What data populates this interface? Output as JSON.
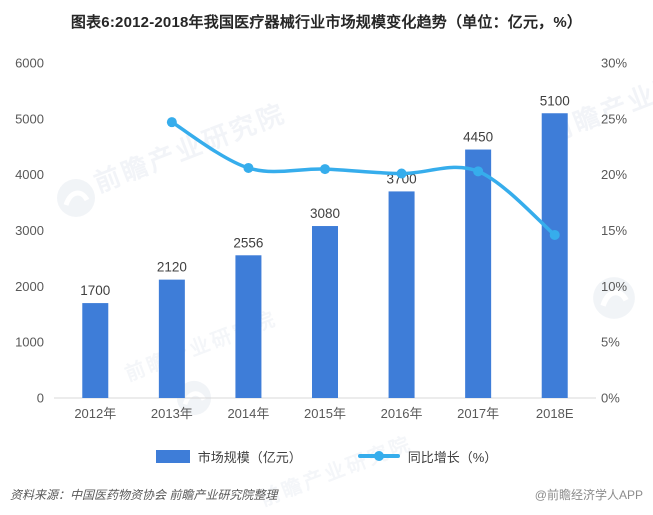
{
  "title": "图表6:2012-2018年我国医疗器械行业市场规模变化趋势（单位：亿元，%）",
  "chart_data": {
    "type": "combo",
    "categories": [
      "2012年",
      "2013年",
      "2014年",
      "2015年",
      "2016年",
      "2017年",
      "2018E"
    ],
    "series": [
      {
        "name": "市场规模（亿元）",
        "type": "bar",
        "values": [
          1700,
          2120,
          2556,
          3080,
          3700,
          4450,
          5100
        ],
        "color": "#3e7dd8",
        "labels": [
          "1700",
          "2120",
          "2556",
          "3080",
          "3700",
          "4450",
          "5100"
        ]
      },
      {
        "name": "同比增长（%）",
        "type": "line",
        "values": [
          null,
          24.7,
          20.6,
          20.5,
          20.1,
          20.3,
          14.6
        ],
        "color": "#36adec",
        "smooth": true
      }
    ],
    "left_axis": {
      "min": 0,
      "max": 6000,
      "ticks": [
        "6000",
        "5000",
        "4000",
        "3000",
        "2000",
        "1000",
        "0"
      ]
    },
    "right_axis": {
      "min": 0,
      "max": 30,
      "ticks": [
        "30%",
        "25%",
        "20%",
        "15%",
        "10%",
        "5%",
        "0%"
      ]
    },
    "grid": false,
    "legend_position": "bottom",
    "title": "图表6:2012-2018年我国医疗器械行业市场规模变化趋势（单位：亿元，%）"
  },
  "legend": [
    {
      "label": "市场规模（亿元）",
      "swatch": "bar"
    },
    {
      "label": "同比增长（%）",
      "swatch": "line"
    }
  ],
  "footer": {
    "source": "资料来源：中国医药物资协会  前瞻产业研究院整理",
    "credit": "@前瞻经济学人APP"
  },
  "watermark": {
    "text": "前瞻产业研究院"
  },
  "colors": {
    "bar": "#3e7dd8",
    "line": "#36adec",
    "axis_text": "#595959",
    "bar_label_text": "#404040",
    "title_text": "#262626",
    "baseline": "#d9d9d9",
    "watermark": "#a9b8cf"
  }
}
